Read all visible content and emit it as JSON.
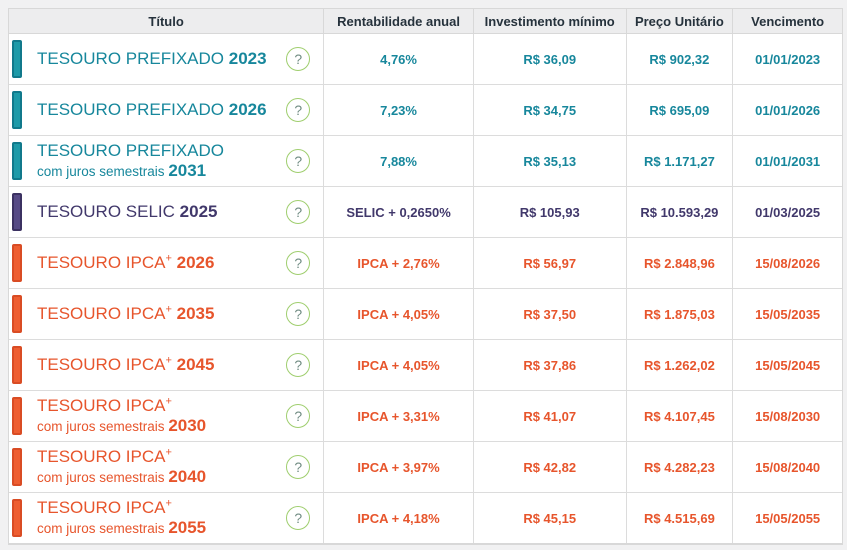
{
  "columns": [
    "Título",
    "Rentabilidade anual",
    "Investimento mínimo",
    "Preço Unitário",
    "Vencimento"
  ],
  "help_icon_glyph": "?",
  "colors": {
    "teal_text": "#17879c",
    "purple_text": "#41386b",
    "orange_text": "#e7552c",
    "header_text": "#26323c",
    "help_circle_border": "#9fce6e"
  },
  "rows": [
    {
      "theme": "teal",
      "name_main": "TESOURO PREFIXADO",
      "has_plus": false,
      "name_sub": "",
      "year": "2023",
      "rate": "4,76%",
      "min_investment": "R$ 36,09",
      "unit_price": "R$ 902,32",
      "maturity": "01/01/2023"
    },
    {
      "theme": "teal",
      "name_main": "TESOURO PREFIXADO",
      "has_plus": false,
      "name_sub": "",
      "year": "2026",
      "rate": "7,23%",
      "min_investment": "R$ 34,75",
      "unit_price": "R$ 695,09",
      "maturity": "01/01/2026"
    },
    {
      "theme": "teal",
      "name_main": "TESOURO PREFIXADO",
      "has_plus": false,
      "name_sub": "com juros semestrais",
      "year": "2031",
      "rate": "7,88%",
      "min_investment": "R$ 35,13",
      "unit_price": "R$ 1.171,27",
      "maturity": "01/01/2031"
    },
    {
      "theme": "purple",
      "name_main": "TESOURO SELIC",
      "has_plus": false,
      "name_sub": "",
      "year": "2025",
      "rate": "SELIC + 0,2650%",
      "min_investment": "R$ 105,93",
      "unit_price": "R$ 10.593,29",
      "maturity": "01/03/2025"
    },
    {
      "theme": "orange",
      "name_main": "TESOURO IPCA",
      "has_plus": true,
      "name_sub": "",
      "year": "2026",
      "rate": "IPCA + 2,76%",
      "min_investment": "R$ 56,97",
      "unit_price": "R$ 2.848,96",
      "maturity": "15/08/2026"
    },
    {
      "theme": "orange",
      "name_main": "TESOURO IPCA",
      "has_plus": true,
      "name_sub": "",
      "year": "2035",
      "rate": "IPCA + 4,05%",
      "min_investment": "R$ 37,50",
      "unit_price": "R$ 1.875,03",
      "maturity": "15/05/2035"
    },
    {
      "theme": "orange",
      "name_main": "TESOURO IPCA",
      "has_plus": true,
      "name_sub": "",
      "year": "2045",
      "rate": "IPCA + 4,05%",
      "min_investment": "R$ 37,86",
      "unit_price": "R$ 1.262,02",
      "maturity": "15/05/2045"
    },
    {
      "theme": "orange",
      "name_main": "TESOURO IPCA",
      "has_plus": true,
      "name_sub": "com juros semestrais",
      "year": "2030",
      "rate": "IPCA + 3,31%",
      "min_investment": "R$ 41,07",
      "unit_price": "R$ 4.107,45",
      "maturity": "15/08/2030"
    },
    {
      "theme": "orange",
      "name_main": "TESOURO IPCA",
      "has_plus": true,
      "name_sub": "com juros semestrais",
      "year": "2040",
      "rate": "IPCA + 3,97%",
      "min_investment": "R$ 42,82",
      "unit_price": "R$ 4.282,23",
      "maturity": "15/08/2040"
    },
    {
      "theme": "orange",
      "name_main": "TESOURO IPCA",
      "has_plus": true,
      "name_sub": "com juros semestrais",
      "year": "2055",
      "rate": "IPCA + 4,18%",
      "min_investment": "R$ 45,15",
      "unit_price": "R$ 4.515,69",
      "maturity": "15/05/2055"
    }
  ]
}
